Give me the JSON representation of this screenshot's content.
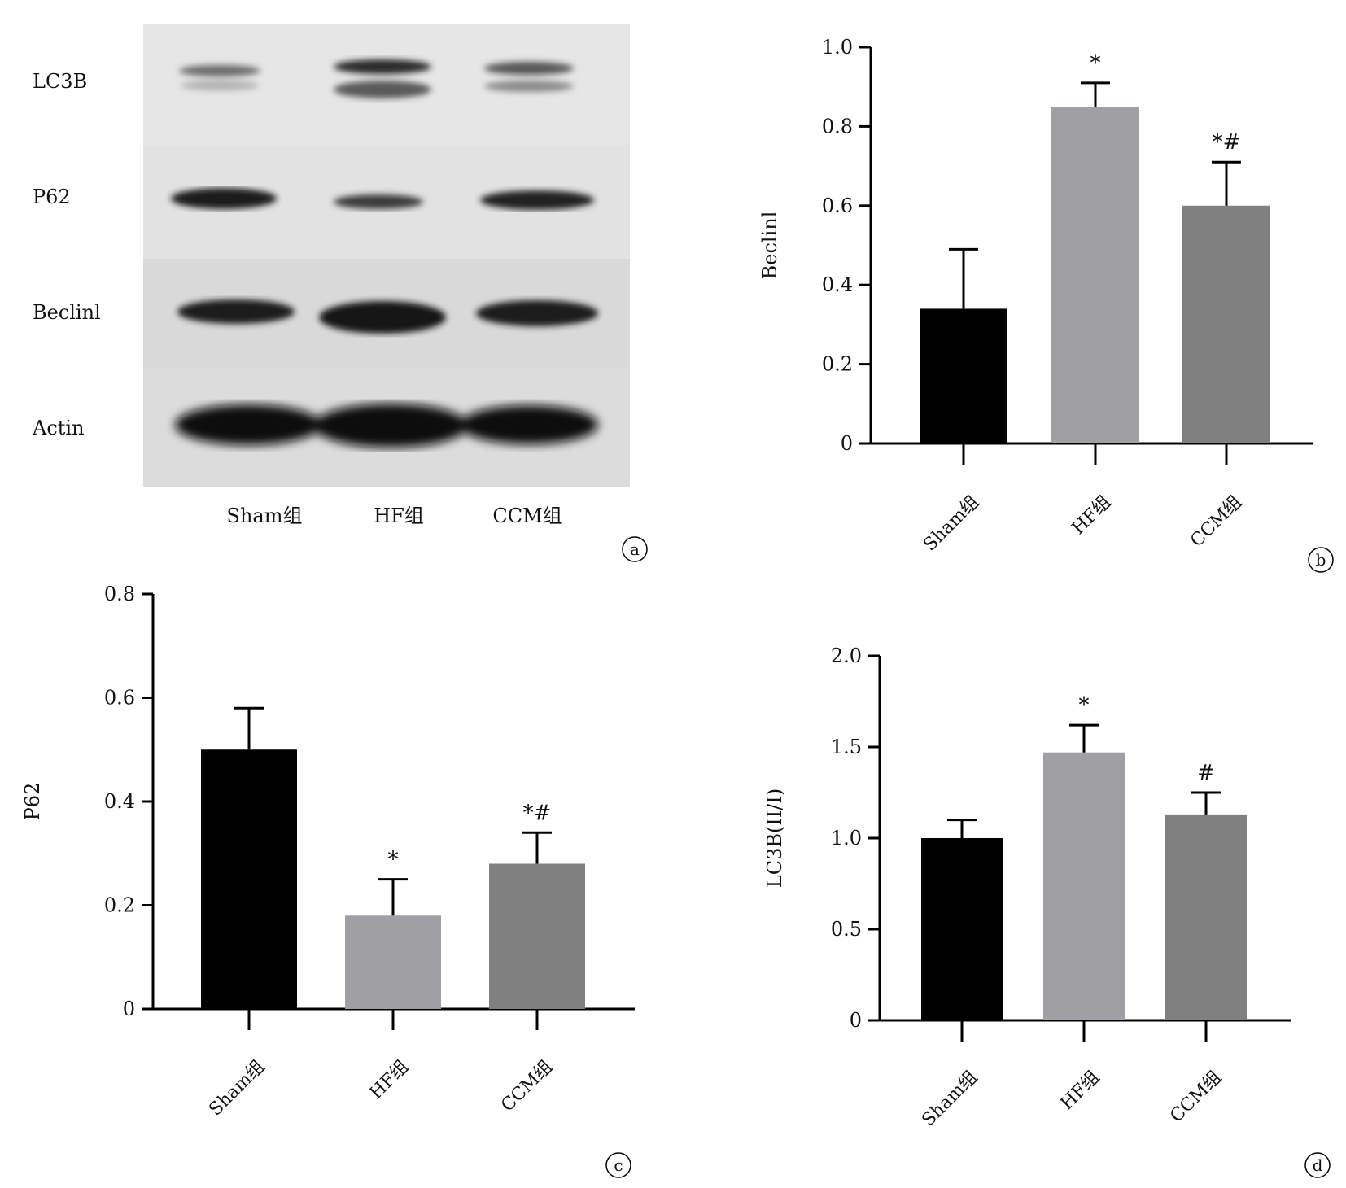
{
  "figure": {
    "panel_a": {
      "tag": "a",
      "row_labels": [
        "LC3B",
        "P62",
        "Beclinl",
        "Actin"
      ],
      "lane_labels": [
        "Sham组",
        "HF组",
        "CCM组"
      ]
    },
    "panel_b": {
      "tag": "b"
    },
    "panel_c": {
      "tag": "c"
    },
    "panel_d": {
      "tag": "d"
    }
  },
  "chart_data": [
    {
      "panel": "b",
      "type": "bar",
      "categories": [
        "Sham组",
        "HF组",
        "CCM组"
      ],
      "values": [
        0.34,
        0.85,
        0.6
      ],
      "errors": [
        0.15,
        0.06,
        0.11
      ],
      "annotations": [
        "",
        "*",
        "*#"
      ],
      "ylabel": "Beclinl",
      "xlabel": "",
      "ylim": [
        0,
        1.0
      ],
      "yticks": [
        "0",
        "0.2",
        "0.4",
        "0.6",
        "0.8",
        "1.0"
      ],
      "colors": [
        "#000000",
        "#a0a0a4",
        "#808080"
      ]
    },
    {
      "panel": "c",
      "type": "bar",
      "categories": [
        "Sham组",
        "HF组",
        "CCM组"
      ],
      "values": [
        0.5,
        0.18,
        0.28
      ],
      "errors": [
        0.08,
        0.07,
        0.06
      ],
      "annotations": [
        "",
        "*",
        "*#"
      ],
      "ylabel": "P62",
      "xlabel": "",
      "ylim": [
        0,
        0.8
      ],
      "yticks": [
        "0",
        "0.2",
        "0.4",
        "0.6",
        "0.8"
      ],
      "colors": [
        "#000000",
        "#a0a0a4",
        "#808080"
      ]
    },
    {
      "panel": "d",
      "type": "bar",
      "categories": [
        "Sham组",
        "HF组",
        "CCM组"
      ],
      "values": [
        1.0,
        1.47,
        1.13
      ],
      "errors": [
        0.1,
        0.15,
        0.12
      ],
      "annotations": [
        "",
        "*",
        "#"
      ],
      "ylabel": "LC3B(II/I)",
      "xlabel": "",
      "ylim": [
        0,
        2.0
      ],
      "yticks": [
        "0",
        "0.5",
        "1.0",
        "1.5",
        "2.0"
      ],
      "colors": [
        "#000000",
        "#a0a0a4",
        "#808080"
      ]
    }
  ]
}
